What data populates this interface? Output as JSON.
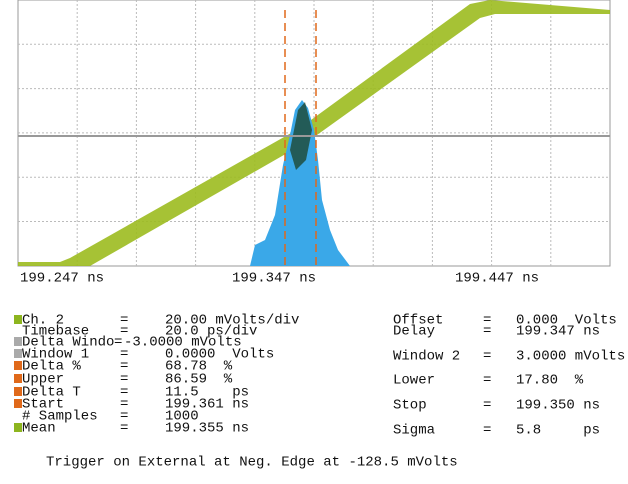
{
  "screen": {
    "x_labels": [
      "199.247 ns",
      "199.347 ns",
      "199.447 ns"
    ],
    "separator": "=",
    "left_params": [
      {
        "name": "Ch. 2",
        "value": "20.00 mVolts/div"
      },
      {
        "name": "Timebase",
        "value": "20.0 ps/div"
      },
      {
        "name": "Delta Windo",
        "value": "-3.0000 mVolts"
      },
      {
        "name": "Window 1",
        "value": "0.0000  Volts"
      },
      {
        "name": "Delta %",
        "value": "68.78  %"
      },
      {
        "name": "Upper",
        "value": "86.59  %"
      },
      {
        "name": "Delta T",
        "value": "11.5    ps"
      },
      {
        "name": "Start",
        "value": "199.361 ns"
      },
      {
        "name": "# Samples",
        "value": "1000"
      },
      {
        "name": "Mean",
        "value": "199.355 ns"
      }
    ],
    "right_params": [
      {
        "name": "Offset",
        "value": "0.000  Volts"
      },
      {
        "name": "Delay",
        "value": "199.347 ns"
      },
      {
        "name": "Window 2",
        "value": "3.0000 mVolts"
      },
      {
        "name": "Lower",
        "value": "17.80  %"
      },
      {
        "name": "Stop",
        "value": "199.350 ns"
      },
      {
        "name": "Sigma",
        "value": "5.8     ps"
      }
    ],
    "trigger": "Trigger on External at Neg. Edge at -128.5 mVolts"
  }
}
